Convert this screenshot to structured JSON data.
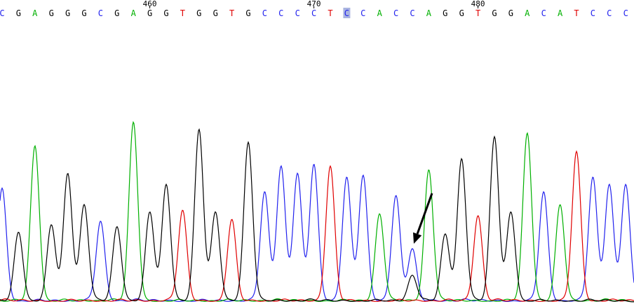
{
  "chart_data": {
    "type": "line",
    "title": "",
    "xlabel": "",
    "ylabel": "",
    "base_colors": {
      "A": "#00b000",
      "C": "#2222ee",
      "G": "#000000",
      "T": "#e00000"
    },
    "sequence": [
      "C",
      "G",
      "A",
      "G",
      "G",
      "G",
      "C",
      "G",
      "A",
      "G",
      "G",
      "T",
      "G",
      "G",
      "T",
      "G",
      "C",
      "C",
      "C",
      "C",
      "T",
      "C",
      "C",
      "A",
      "C",
      "C",
      "A",
      "G",
      "G",
      "T",
      "G",
      "G",
      "A",
      "C",
      "A",
      "T",
      "C",
      "C",
      "C"
    ],
    "first_position": 451,
    "position_ticks": [
      {
        "label": "460",
        "position": 460
      },
      {
        "label": "470",
        "position": 470
      },
      {
        "label": "480",
        "position": 480
      }
    ],
    "highlighted_position": 472,
    "ylim": [
      0,
      100
    ],
    "peaks": [
      {
        "base": "C",
        "height": 62
      },
      {
        "base": "G",
        "height": 38
      },
      {
        "base": "A",
        "height": 85
      },
      {
        "base": "G",
        "height": 42
      },
      {
        "base": "G",
        "height": 70
      },
      {
        "base": "G",
        "height": 53
      },
      {
        "base": "C",
        "height": 44
      },
      {
        "base": "G",
        "height": 41
      },
      {
        "base": "A",
        "height": 98
      },
      {
        "base": "G",
        "height": 49
      },
      {
        "base": "G",
        "height": 64
      },
      {
        "base": "T",
        "height": 50
      },
      {
        "base": "G",
        "height": 94
      },
      {
        "base": "G",
        "height": 49
      },
      {
        "base": "T",
        "height": 45
      },
      {
        "base": "G",
        "height": 87
      },
      {
        "base": "C",
        "height": 60
      },
      {
        "base": "C",
        "height": 74
      },
      {
        "base": "C",
        "height": 70
      },
      {
        "base": "C",
        "height": 75
      },
      {
        "base": "T",
        "height": 74
      },
      {
        "base": "C",
        "height": 68
      },
      {
        "base": "C",
        "height": 69
      },
      {
        "base": "A",
        "height": 48
      },
      {
        "base": "C",
        "height": 58
      },
      {
        "base": "C",
        "height": 29,
        "secondary": {
          "base": "G",
          "height": 14
        }
      },
      {
        "base": "A",
        "height": 72
      },
      {
        "base": "G",
        "height": 37
      },
      {
        "base": "G",
        "height": 78
      },
      {
        "base": "T",
        "height": 47
      },
      {
        "base": "G",
        "height": 90
      },
      {
        "base": "G",
        "height": 49
      },
      {
        "base": "A",
        "height": 92
      },
      {
        "base": "C",
        "height": 60
      },
      {
        "base": "A",
        "height": 53
      },
      {
        "base": "T",
        "height": 82
      },
      {
        "base": "C",
        "height": 68
      },
      {
        "base": "C",
        "height": 64
      },
      {
        "base": "C",
        "height": 64
      }
    ],
    "annotation": {
      "type": "arrow",
      "points_to_position": 476
    }
  }
}
